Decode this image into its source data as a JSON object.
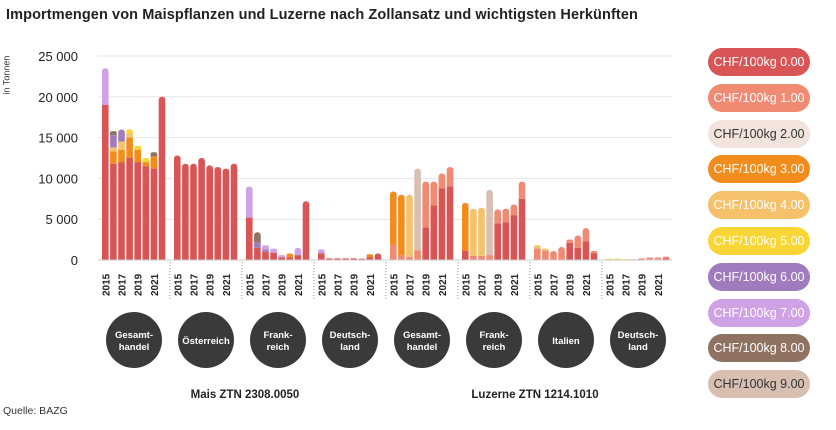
{
  "title": "Importmengen von Maispflanzen und Luzerne nach Zollansatz und wichtigsten Herkünften",
  "source": "Quelle: BAZG",
  "colors": [
    "#d95555",
    "#f08a72",
    "#f2e3dc",
    "#f28c1c",
    "#f5c16a",
    "#f9d535",
    "#a07cbe",
    "#cfa2e6",
    "#8f7261",
    "#d8bfb2"
  ],
  "chart_data": {
    "type": "bar",
    "stacked": true,
    "title": "Importmengen von Maispflanzen und Luzerne nach Zollansatz und wichtigsten Herkünften",
    "ylabel": "in Tonnen",
    "ylim": [
      0,
      25000
    ],
    "yticks": [
      0,
      5000,
      10000,
      15000,
      20000,
      25000
    ],
    "ytick_labels": [
      "0",
      "5 000",
      "10 000",
      "15 000",
      "20 000",
      "25 000"
    ],
    "years": [
      2015,
      2016,
      2017,
      2018,
      2019,
      2020,
      2021,
      2022
    ],
    "year_labels": [
      "2015",
      "2017",
      "2019",
      "2021"
    ],
    "series_names": [
      "CHF/100kg 0.00",
      "CHF/100kg 1.00",
      "CHF/100kg 2.00",
      "CHF/100kg 3.00",
      "CHF/100kg 4.00",
      "CHF/100kg 5.00",
      "CHF/100kg 6.00",
      "CHF/100kg 7.00",
      "CHF/100kg 8.00",
      "CHF/100kg 9.00"
    ],
    "products": [
      {
        "label": "Mais ZTN 2308.0050",
        "groups": [
          0,
          1,
          2,
          3
        ]
      },
      {
        "label": "Luzerne ZTN 1214.1010",
        "groups": [
          4,
          5,
          6,
          7
        ]
      }
    ],
    "groups": [
      {
        "label": "Gesamt-\nhandel",
        "bars": [
          [
            19000,
            0,
            0,
            0,
            0,
            0,
            0,
            4500,
            0,
            0
          ],
          [
            11800,
            0,
            0,
            1500,
            500,
            0,
            1500,
            0,
            500,
            0
          ],
          [
            12000,
            0,
            0,
            1500,
            1000,
            0,
            1500,
            0,
            0,
            0
          ],
          [
            12500,
            0,
            0,
            2500,
            500,
            500,
            0,
            0,
            0,
            0
          ],
          [
            12000,
            0,
            0,
            1500,
            0,
            500,
            0,
            0,
            0,
            0
          ],
          [
            11500,
            0,
            0,
            500,
            0,
            500,
            0,
            0,
            0,
            0
          ],
          [
            11200,
            0,
            0,
            1500,
            0,
            0,
            0,
            0,
            500,
            0
          ],
          [
            20000,
            0,
            0,
            0,
            0,
            0,
            0,
            0,
            0,
            0
          ]
        ]
      },
      {
        "label": "Österreich",
        "bars": [
          [
            12800,
            0,
            0,
            0,
            0,
            0,
            0,
            0,
            0,
            0
          ],
          [
            11800,
            0,
            0,
            0,
            0,
            0,
            0,
            0,
            0,
            0
          ],
          [
            11800,
            0,
            0,
            0,
            0,
            0,
            0,
            0,
            0,
            0
          ],
          [
            12500,
            0,
            0,
            0,
            0,
            0,
            0,
            0,
            0,
            0
          ],
          [
            11600,
            0,
            0,
            0,
            0,
            0,
            0,
            0,
            0,
            0
          ],
          [
            11400,
            0,
            0,
            0,
            0,
            0,
            0,
            0,
            0,
            0
          ],
          [
            11200,
            0,
            0,
            0,
            0,
            0,
            0,
            0,
            0,
            0
          ],
          [
            11800,
            0,
            0,
            0,
            0,
            0,
            0,
            0,
            0,
            0
          ]
        ]
      },
      {
        "label": "Frank-\nreich",
        "bars": [
          [
            5200,
            0,
            0,
            0,
            0,
            0,
            0,
            3800,
            0,
            0
          ],
          [
            1500,
            0,
            0,
            0,
            0,
            0,
            700,
            0,
            1200,
            0
          ],
          [
            1000,
            0,
            0,
            0,
            0,
            0,
            300,
            500,
            0,
            0
          ],
          [
            900,
            0,
            0,
            0,
            0,
            0,
            0,
            500,
            0,
            0
          ],
          [
            300,
            0,
            0,
            0,
            0,
            0,
            0,
            300,
            0,
            0
          ],
          [
            300,
            0,
            0,
            500,
            0,
            0,
            0,
            0,
            0,
            0
          ],
          [
            600,
            0,
            0,
            0,
            0,
            0,
            0,
            900,
            0,
            0
          ],
          [
            7200,
            0,
            0,
            0,
            0,
            0,
            0,
            0,
            0,
            0
          ]
        ]
      },
      {
        "label": "Deutsch-\nland",
        "bars": [
          [
            800,
            0,
            0,
            0,
            0,
            0,
            0,
            500,
            0,
            0
          ],
          [
            200,
            0,
            0,
            0,
            0,
            0,
            0,
            0,
            0,
            0
          ],
          [
            200,
            0,
            0,
            0,
            0,
            0,
            0,
            0,
            0,
            0
          ],
          [
            200,
            0,
            0,
            0,
            0,
            0,
            0,
            0,
            0,
            0
          ],
          [
            200,
            0,
            0,
            0,
            0,
            0,
            0,
            0,
            0,
            0
          ],
          [
            150,
            0,
            0,
            0,
            0,
            0,
            0,
            0,
            0,
            0
          ],
          [
            300,
            0,
            0,
            400,
            0,
            0,
            0,
            0,
            0,
            0
          ],
          [
            800,
            0,
            0,
            0,
            0,
            0,
            0,
            0,
            0,
            0
          ]
        ]
      },
      {
        "label": "Gesamt-\nhandel",
        "bars": [
          [
            0,
            1900,
            0,
            6500,
            0,
            0,
            0,
            0,
            0,
            0
          ],
          [
            0,
            600,
            0,
            7400,
            0,
            0,
            0,
            0,
            0,
            0
          ],
          [
            0,
            400,
            0,
            0,
            7600,
            0,
            0,
            0,
            0,
            0
          ],
          [
            0,
            1200,
            0,
            0,
            0,
            0,
            0,
            0,
            0,
            10000
          ],
          [
            4000,
            5600,
            0,
            0,
            0,
            0,
            0,
            0,
            0,
            0
          ],
          [
            6700,
            2900,
            0,
            0,
            0,
            0,
            0,
            0,
            0,
            0
          ],
          [
            8800,
            1800,
            0,
            0,
            0,
            0,
            0,
            0,
            0,
            0
          ],
          [
            9000,
            2400,
            0,
            0,
            0,
            0,
            0,
            0,
            0,
            0
          ]
        ]
      },
      {
        "label": "Frank-\nreich",
        "bars": [
          [
            1100,
            0,
            0,
            5900,
            0,
            0,
            0,
            0,
            0,
            0
          ],
          [
            0,
            500,
            0,
            0,
            5800,
            0,
            0,
            0,
            0,
            0
          ],
          [
            0,
            500,
            0,
            0,
            5900,
            0,
            0,
            0,
            0,
            0
          ],
          [
            0,
            600,
            0,
            0,
            0,
            0,
            0,
            0,
            0,
            8000
          ],
          [
            4500,
            1700,
            0,
            0,
            0,
            0,
            0,
            0,
            0,
            0
          ],
          [
            4600,
            1700,
            0,
            0,
            0,
            0,
            0,
            0,
            0,
            0
          ],
          [
            5500,
            1300,
            0,
            0,
            0,
            0,
            0,
            0,
            0,
            0
          ],
          [
            7500,
            2100,
            0,
            0,
            0,
            0,
            0,
            0,
            0,
            0
          ]
        ]
      },
      {
        "label": "Italien",
        "bars": [
          [
            0,
            1400,
            0,
            0,
            400,
            0,
            0,
            0,
            0,
            0
          ],
          [
            0,
            1100,
            0,
            0,
            300,
            0,
            0,
            0,
            0,
            0
          ],
          [
            0,
            1100,
            0,
            0,
            0,
            0,
            0,
            0,
            0,
            0
          ],
          [
            0,
            1600,
            0,
            0,
            0,
            0,
            0,
            0,
            0,
            0
          ],
          [
            2100,
            400,
            0,
            0,
            0,
            0,
            0,
            0,
            0,
            0
          ],
          [
            1500,
            1500,
            0,
            0,
            0,
            0,
            0,
            0,
            0,
            0
          ],
          [
            2300,
            1600,
            0,
            0,
            0,
            0,
            0,
            0,
            0,
            0
          ],
          [
            800,
            300,
            0,
            0,
            0,
            0,
            0,
            0,
            0,
            0
          ]
        ]
      },
      {
        "label": "Deutsch-\nland",
        "bars": [
          [
            0,
            0,
            0,
            0,
            0,
            150,
            0,
            0,
            0,
            0
          ],
          [
            0,
            0,
            0,
            0,
            0,
            150,
            0,
            0,
            0,
            0
          ],
          [
            0,
            0,
            0,
            0,
            0,
            100,
            0,
            0,
            0,
            0
          ],
          [
            0,
            0,
            0,
            0,
            0,
            0,
            0,
            0,
            0,
            100
          ],
          [
            0,
            200,
            0,
            0,
            0,
            0,
            0,
            0,
            0,
            0
          ],
          [
            100,
            200,
            0,
            0,
            0,
            0,
            0,
            0,
            0,
            0
          ],
          [
            100,
            200,
            0,
            0,
            0,
            0,
            0,
            0,
            0,
            0
          ],
          [
            200,
            200,
            0,
            0,
            0,
            0,
            0,
            0,
            0,
            0
          ]
        ]
      }
    ]
  }
}
